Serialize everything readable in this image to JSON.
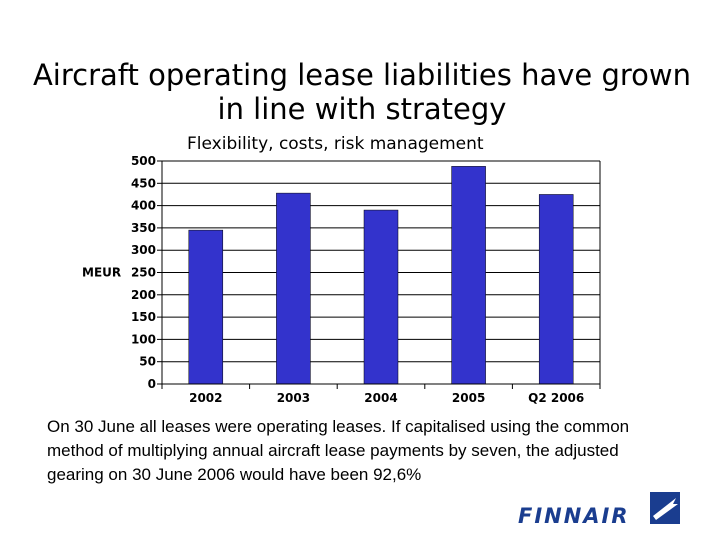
{
  "slide": {
    "title": "Aircraft operating lease liabilities have grown in line with strategy",
    "body_text": "On 30 June all leases were operating leases. If capitalised using the common method of multiplying annual aircraft lease payments by seven, the adjusted gearing on 30 June 2006 would have been 92,6%",
    "logo_text": "FINNAIR"
  },
  "colors": {
    "bar": "#3333cc",
    "grid": "#000000",
    "logo": "#1a3d8f"
  },
  "chart_data": {
    "type": "bar",
    "title": "Flexibility, costs, risk management",
    "ylabel": "MEUR",
    "xlabel": "",
    "categories": [
      "2002",
      "2003",
      "2004",
      "2005",
      "Q2 2006"
    ],
    "values": [
      345,
      428,
      390,
      488,
      425
    ],
    "ylim": [
      0,
      500
    ],
    "yticks": [
      0,
      50,
      100,
      150,
      200,
      250,
      300,
      350,
      400,
      450,
      500
    ],
    "grid": true,
    "legend": "none"
  }
}
